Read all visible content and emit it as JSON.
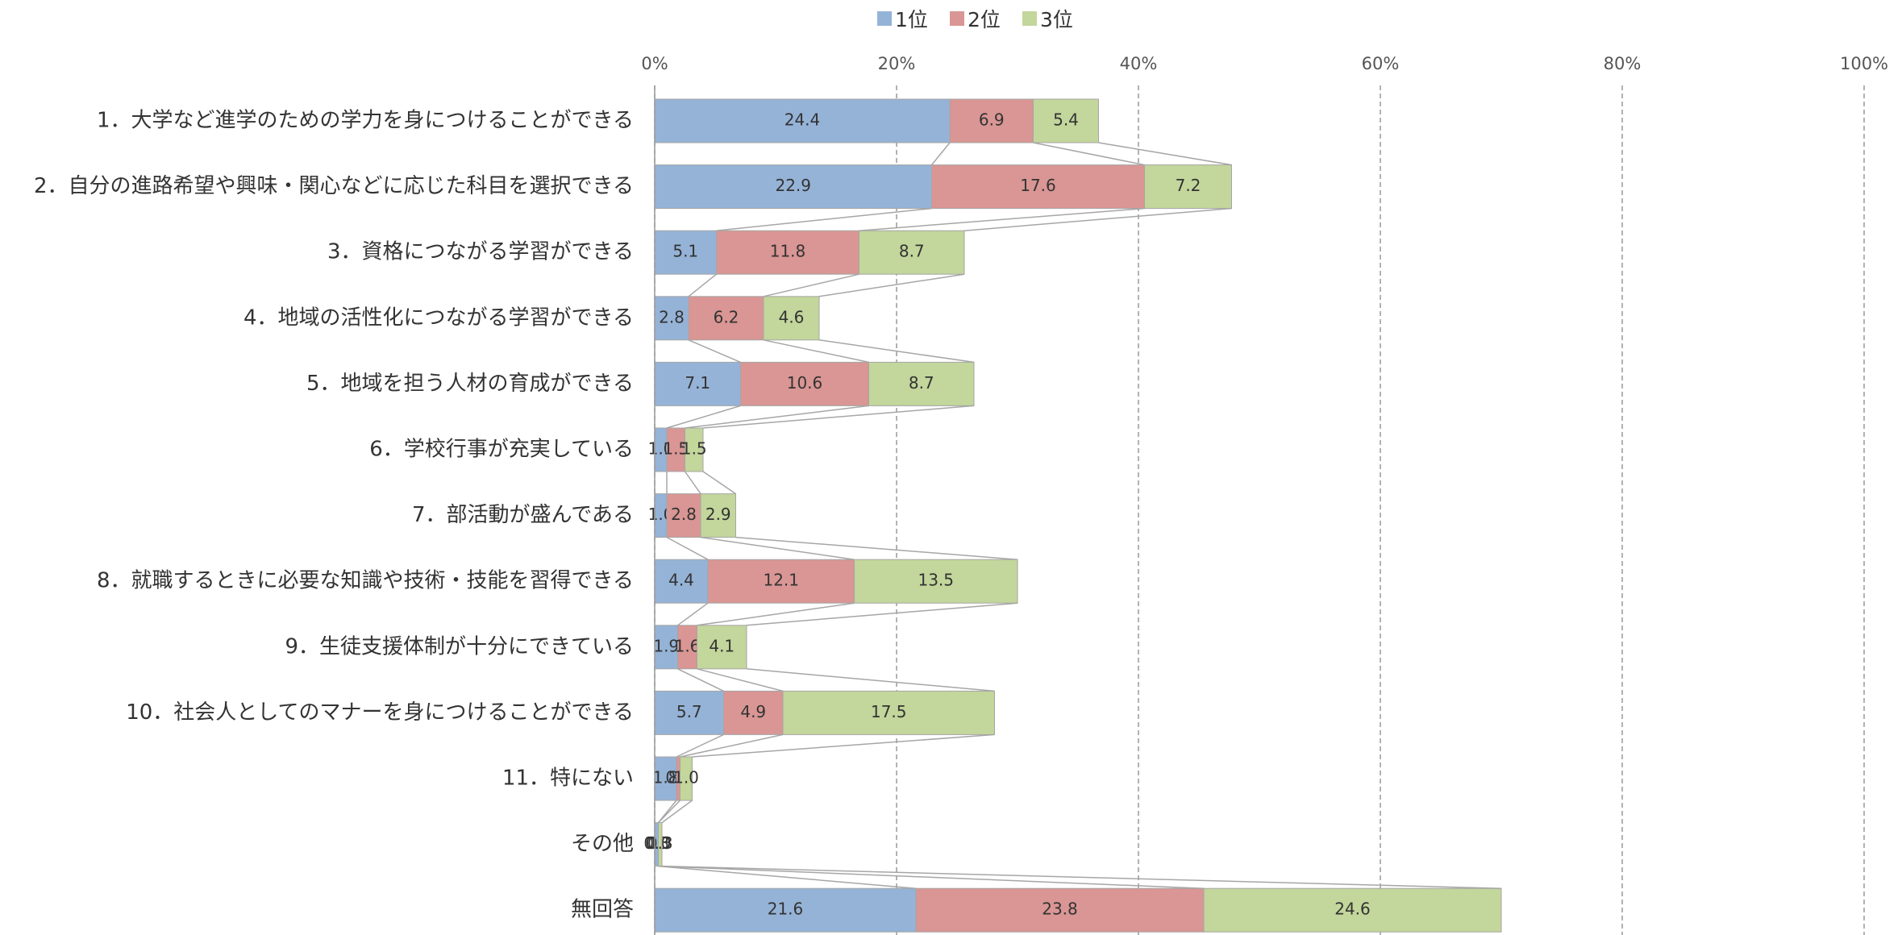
{
  "chart_data": {
    "type": "stacked_barh",
    "categories": [
      "1．大学など進学のための学力を身につけることができる",
      "2．自分の進路希望や興味・関心などに応じた科目を選択できる",
      "3．資格につながる学習ができる",
      "4．地域の活性化につながる学習ができる",
      "5．地域を担う人材の育成ができる",
      "6．学校行事が充実している",
      "7．部活動が盛んである",
      "8．就職するときに必要な知識や技術・技能を習得できる",
      "9．生徒支援体制が十分にできている",
      "10．社会人としてのマナーを身につけることができる",
      "11．特にない",
      "その他",
      "無回答"
    ],
    "series": [
      {
        "name": "1位",
        "color": "#95b3d7",
        "values": [
          24.4,
          22.9,
          5.1,
          2.8,
          7.1,
          1.0,
          1.0,
          4.4,
          1.9,
          5.7,
          1.8,
          0.3,
          21.6
        ],
        "value_labels": [
          "24.4",
          "22.9",
          "5.1",
          "2.8",
          "7.1",
          "1.0",
          "1.0",
          "4.4",
          "1.9",
          "5.7",
          "1.8",
          "0.3",
          "21.6"
        ]
      },
      {
        "name": "2位",
        "color": "#d99694",
        "values": [
          6.9,
          17.6,
          11.8,
          6.2,
          10.6,
          1.5,
          2.8,
          12.1,
          1.6,
          4.9,
          0.3,
          0.0,
          23.8
        ],
        "value_labels": [
          "6.9",
          "17.6",
          "11.8",
          "6.2",
          "10.6",
          "1.5",
          "2.8",
          "12.1",
          "1.6",
          "4.9",
          "0.3",
          "0.0",
          "23.8"
        ]
      },
      {
        "name": "3位",
        "color": "#c3d69b",
        "values": [
          5.4,
          7.2,
          8.7,
          4.6,
          8.7,
          1.5,
          2.9,
          13.5,
          4.1,
          17.5,
          1.0,
          0.3,
          24.6
        ],
        "value_labels": [
          "5.4",
          "7.2",
          "8.7",
          "4.6",
          "8.7",
          "1.5",
          "2.9",
          "13.5",
          "4.1",
          "17.5",
          "1.0",
          "0.3",
          "24.6"
        ]
      }
    ],
    "xlim": [
      0,
      100
    ],
    "xticks": [
      {
        "value": 0,
        "label": "0%"
      },
      {
        "value": 20,
        "label": "20%"
      },
      {
        "value": 40,
        "label": "40%"
      },
      {
        "value": 60,
        "label": "60%"
      },
      {
        "value": 80,
        "label": "80%"
      },
      {
        "value": 100,
        "label": "100%"
      }
    ],
    "grid": true,
    "legend": "top"
  }
}
